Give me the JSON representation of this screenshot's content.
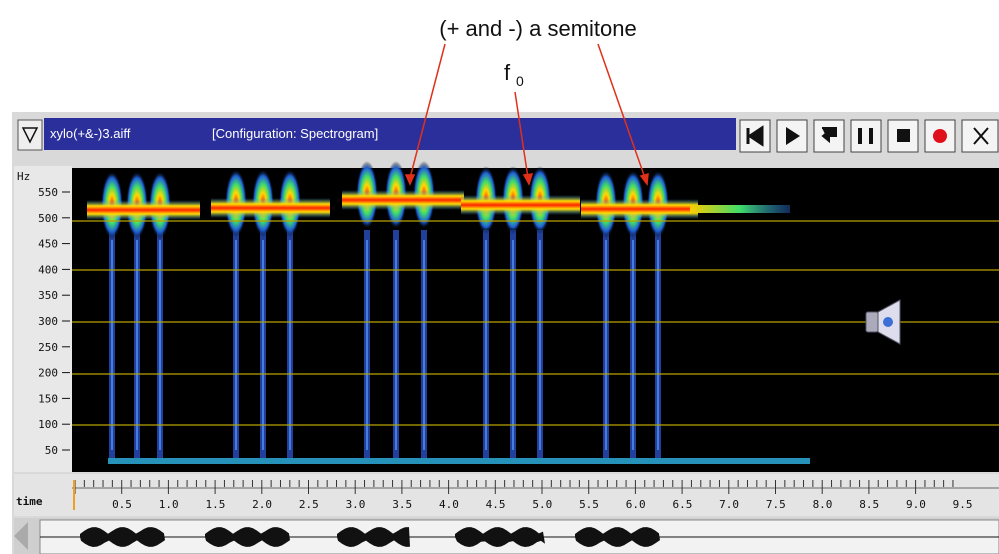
{
  "annotations": {
    "semitone": "(+ and -) a semitone",
    "f0": {
      "base": "f",
      "sub": "0"
    }
  },
  "window": {
    "file": "xylo(+&-)3.aiff",
    "configuration": "[Configuration: Spectrogram]"
  },
  "frequency_axis": {
    "label": "Hz",
    "ticks": [
      "550",
      "500",
      "450",
      "400",
      "350",
      "300",
      "250",
      "200",
      "150",
      "100",
      "50"
    ]
  },
  "time_axis": {
    "label": "time",
    "ticks": [
      "0.5",
      "1.0",
      "1.5",
      "2.0",
      "2.5",
      "3.0",
      "3.5",
      "4.0",
      "4.5",
      "5.0",
      "5.5",
      "6.0",
      "6.5",
      "7.0",
      "7.5",
      "8.0",
      "8.5",
      "9.0",
      "9.5"
    ]
  }
}
